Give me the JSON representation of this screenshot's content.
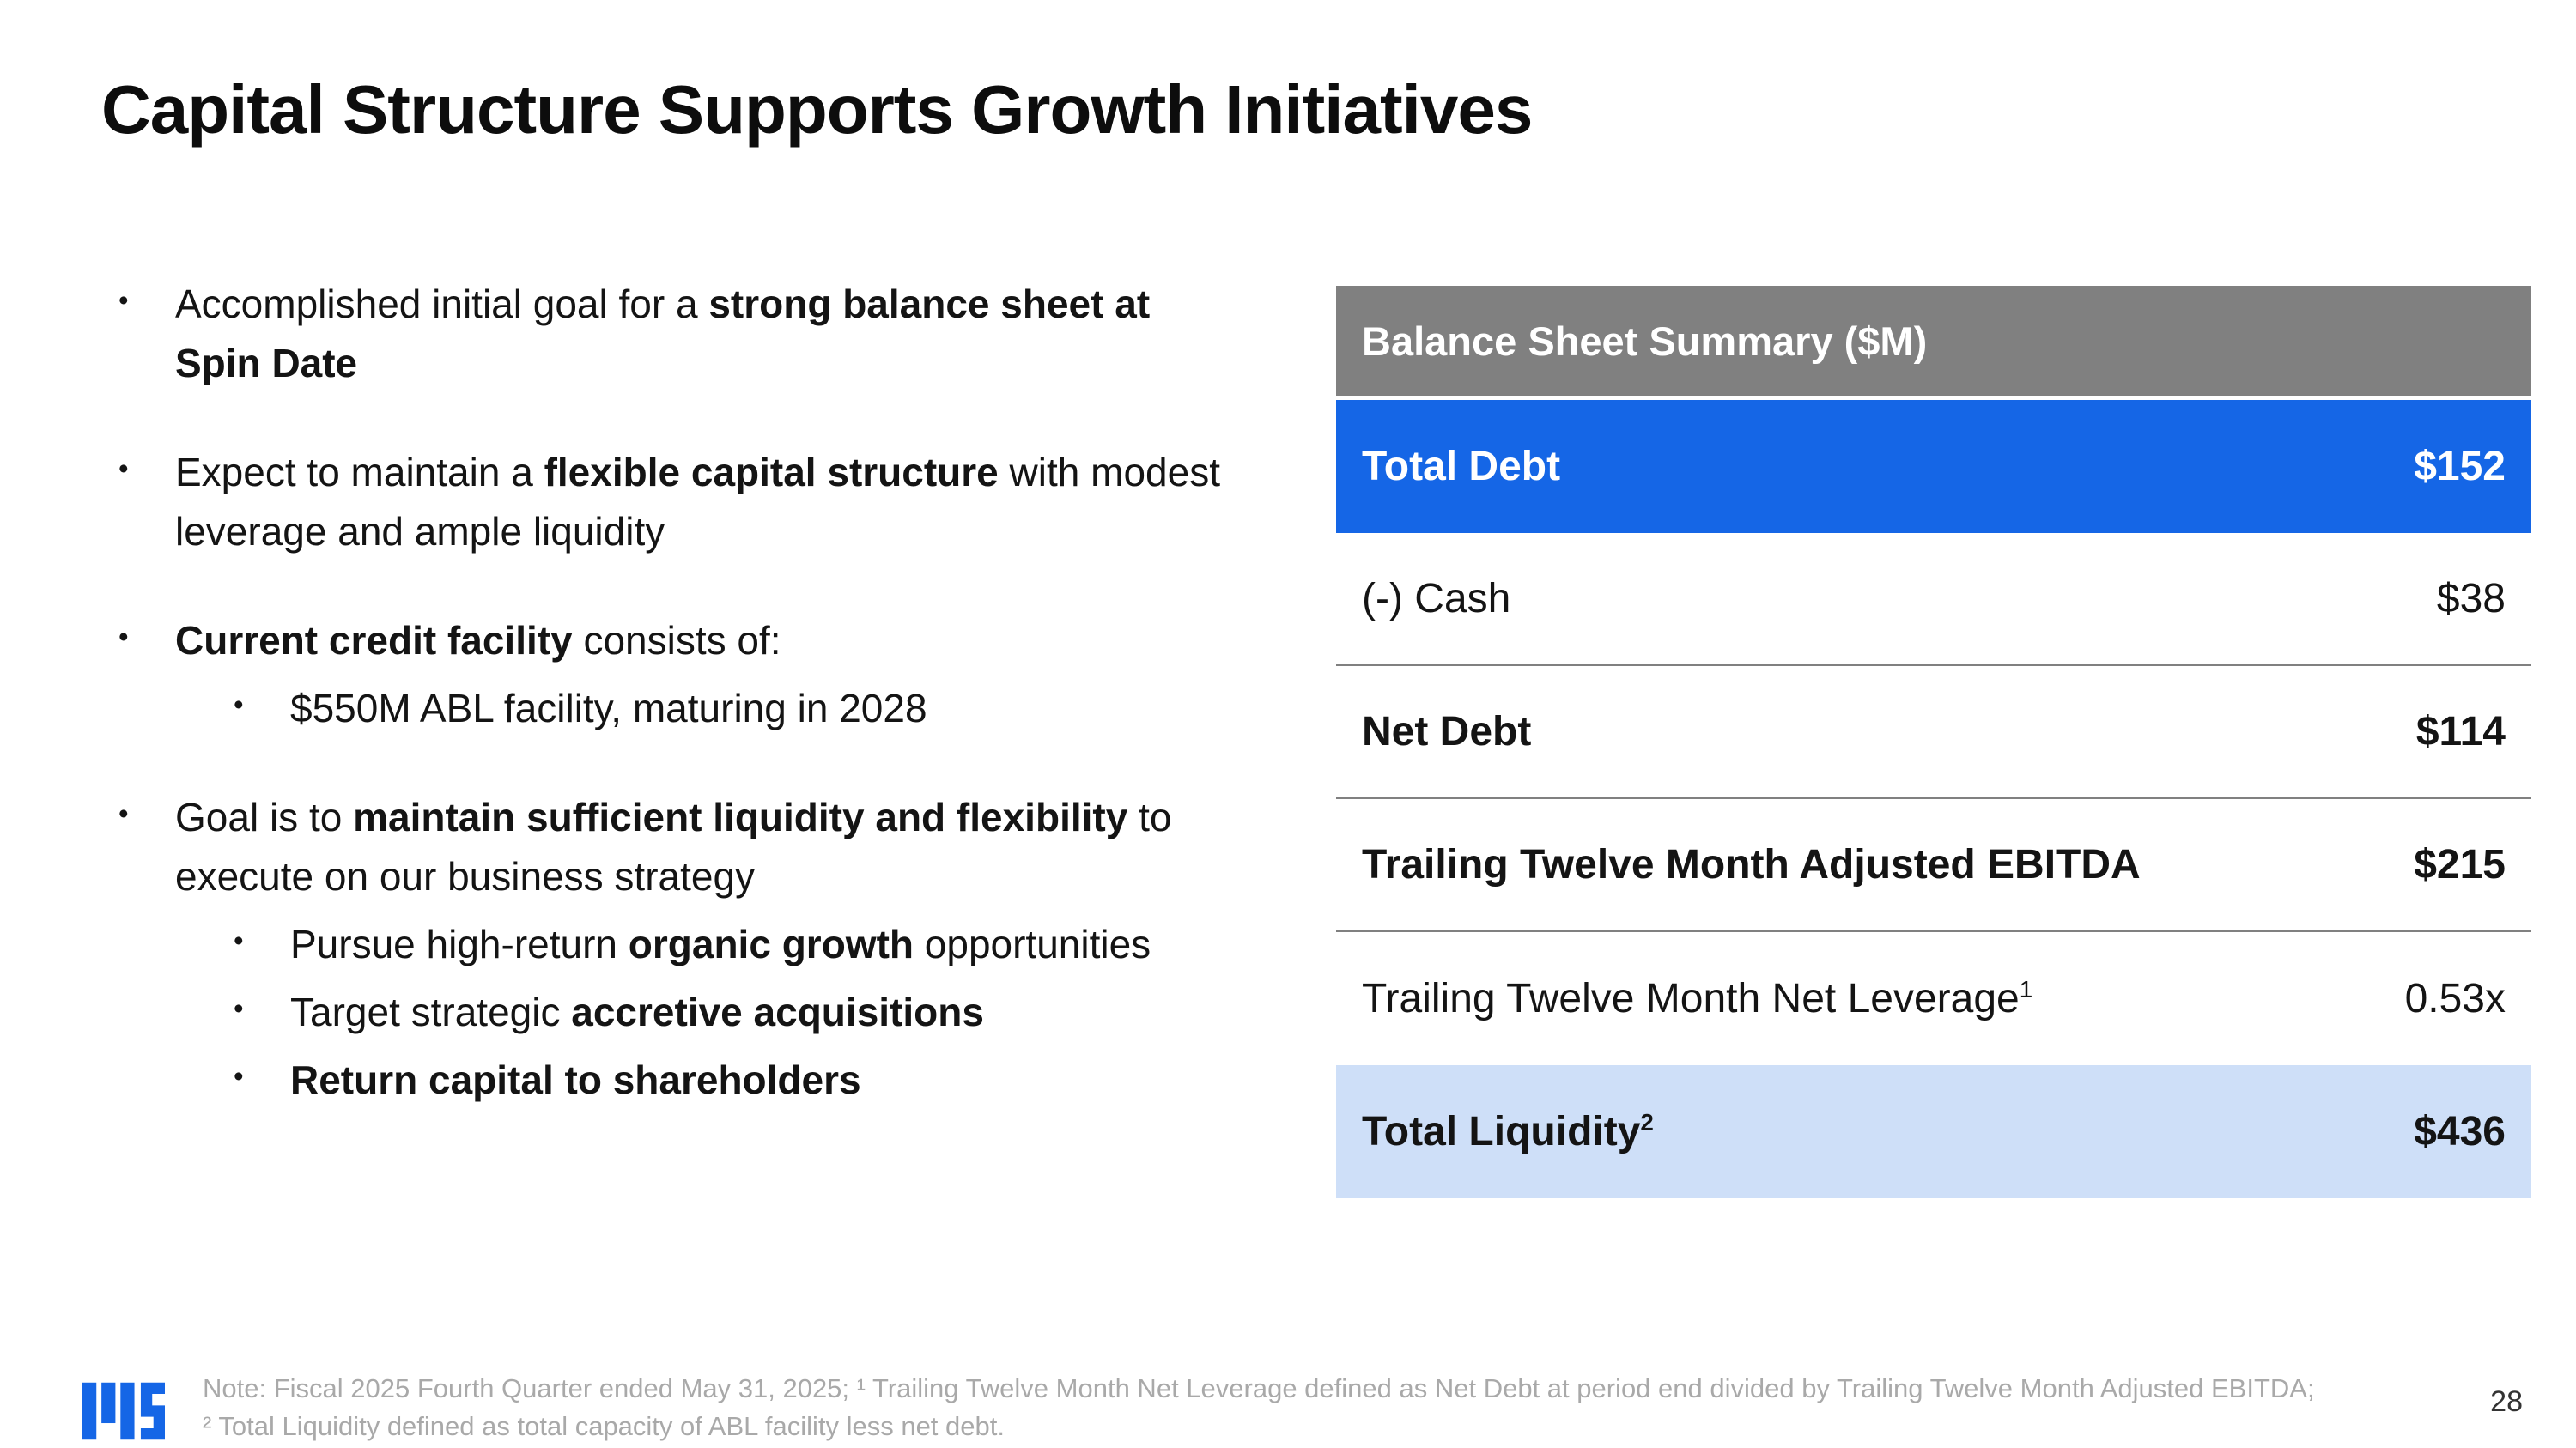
{
  "title": "Capital Structure Supports Growth Initiatives",
  "bullets": [
    {
      "level": 1,
      "segments": [
        {
          "t": "Accomplished initial goal for a ",
          "b": false
        },
        {
          "t": "strong balance sheet at Spin Date",
          "b": true
        }
      ]
    },
    {
      "level": 1,
      "segments": [
        {
          "t": "Expect to maintain a ",
          "b": false
        },
        {
          "t": "flexible capital structure",
          "b": true
        },
        {
          "t": " with modest leverage and ample liquidity",
          "b": false
        }
      ]
    },
    {
      "level": 1,
      "segments": [
        {
          "t": "Current credit facility",
          "b": true
        },
        {
          "t": " consists of:",
          "b": false
        }
      ]
    },
    {
      "level": 2,
      "segments": [
        {
          "t": "$550M ABL facility, maturing in 2028",
          "b": false
        }
      ]
    },
    {
      "level": 1,
      "segments": [
        {
          "t": "Goal is to ",
          "b": false
        },
        {
          "t": "maintain sufficient liquidity and flexibility",
          "b": true
        },
        {
          "t": " to execute on our business strategy",
          "b": false
        }
      ]
    },
    {
      "level": 2,
      "segments": [
        {
          "t": "Pursue high-return ",
          "b": false
        },
        {
          "t": "organic growth",
          "b": true
        },
        {
          "t": " opportunities",
          "b": false
        }
      ]
    },
    {
      "level": 2,
      "segments": [
        {
          "t": "Target strategic ",
          "b": false
        },
        {
          "t": "accretive acquisitions",
          "b": true
        }
      ]
    },
    {
      "level": 2,
      "segments": [
        {
          "t": "Return capital to shareholders",
          "b": true
        }
      ]
    }
  ],
  "table": {
    "header": "Balance Sheet Summary ($M)",
    "rows": [
      {
        "label": "Total Debt",
        "value": "$152",
        "variant": "highlight-blue",
        "bold": true,
        "divider": false
      },
      {
        "label": "(-) Cash",
        "value": "$38",
        "variant": "plain",
        "bold": false,
        "divider": true
      },
      {
        "label": "Net Debt",
        "value": "$114",
        "variant": "plain",
        "bold": true,
        "divider": true
      },
      {
        "label": "Trailing Twelve Month Adjusted EBITDA",
        "value": "$215",
        "variant": "plain",
        "bold": true,
        "divider": true
      },
      {
        "label": "Trailing Twelve Month Net Leverage",
        "sup": "1",
        "value": "0.53x",
        "variant": "plain",
        "bold": false,
        "divider": false
      },
      {
        "label": "Total Liquidity",
        "sup": "2",
        "value": "$436",
        "variant": "highlight-lightblue",
        "bold": true,
        "divider": false
      }
    ]
  },
  "footer": {
    "note_line1": "Note: Fiscal 2025 Fourth Quarter ended May 31, 2025; ¹ Trailing Twelve Month Net Leverage defined as Net Debt at period end divided by Trailing Twelve Month Adjusted EBITDA;",
    "note_line2": "² Total Liquidity defined as total capacity of ABL facility less net debt.",
    "page_number": "28"
  },
  "colors": {
    "highlight_blue": "#1566E6",
    "highlight_light_blue": "#CEDFF8",
    "header_gray": "#808080",
    "note_gray": "#A9A9A9"
  }
}
